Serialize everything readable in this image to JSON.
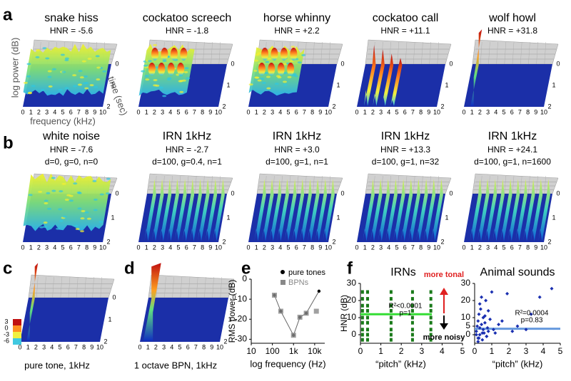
{
  "panels": {
    "a": {
      "label": "a",
      "items": [
        {
          "title": "snake hiss",
          "hnr": "HNR = -5.6"
        },
        {
          "title": "cockatoo screech",
          "hnr": "HNR = -1.8"
        },
        {
          "title": "horse whinny",
          "hnr": "HNR = +2.2"
        },
        {
          "title": "cockatoo call",
          "hnr": "HNR = +11.1"
        },
        {
          "title": "wolf howl",
          "hnr": "HNR = +31.8"
        }
      ],
      "y_label": "log power (dB)",
      "x_label": "frequency (kHz)",
      "z_label": "time (sec)",
      "freq_ticks": [
        "0",
        "1",
        "2",
        "3",
        "4",
        "5",
        "6",
        "7",
        "8",
        "9",
        "10"
      ],
      "time_ticks": [
        "0",
        "1",
        "2"
      ]
    },
    "b": {
      "label": "b",
      "items": [
        {
          "title": "white noise",
          "hnr": "HNR = -7.6",
          "params": "d=0, g=0, n=0"
        },
        {
          "title": "IRN 1kHz",
          "hnr": "HNR = -2.7",
          "params": "d=100, g=0.4, n=1"
        },
        {
          "title": "IRN 1kHz",
          "hnr": "HNR = +3.0",
          "params": "d=100, g=1, n=1"
        },
        {
          "title": "IRN 1kHz",
          "hnr": "HNR = +13.3",
          "params": "d=100, g=1, n=32"
        },
        {
          "title": "IRN 1kHz",
          "hnr": "HNR = +24.1",
          "params": "d=100, g=1, n=1600"
        }
      ]
    },
    "c": {
      "label": "c",
      "caption": "pure tone, 1kHz",
      "colorbar_ticks": [
        "3",
        "0",
        "-3",
        "-6"
      ]
    },
    "d": {
      "label": "d",
      "caption": "1 octave BPN, 1kHz"
    },
    "f": {
      "label": "f",
      "more_tonal": "more tonal",
      "more_noisy": "more noisy"
    }
  },
  "chart_data": [
    {
      "type": "scatter",
      "label": "e",
      "y_label": "RMS power (dB)",
      "x_label": "log frequency (Hz)",
      "log_x": true,
      "xlim": [
        10,
        30000
      ],
      "xticks": [
        10,
        100,
        {
          "value": 1000,
          "label": "1k"
        },
        {
          "value": 10000,
          "label": "10k"
        }
      ],
      "ylim": [
        -32,
        0
      ],
      "yticks": [
        0,
        -10,
        -20,
        -30
      ],
      "series": [
        {
          "name": "pure tones",
          "color": "#000000",
          "x": [
            125,
            250,
            1000,
            2000,
            4000,
            16000
          ],
          "values": [
            -8,
            -16,
            -28,
            -19,
            -17,
            -6
          ]
        },
        {
          "name": "BPNs",
          "color": "#888888",
          "x": [
            125,
            250,
            1000,
            2000,
            4000,
            12000
          ],
          "values": [
            -8,
            -16,
            -28,
            -19,
            -17,
            -16
          ]
        }
      ]
    },
    {
      "type": "scatter",
      "title": "IRNs",
      "y_label": "HNR (dB)",
      "x_label": "“pitch” (kHz)",
      "color": "#1a7a1a",
      "fit_color": "#33dd33",
      "xlim": [
        0,
        5
      ],
      "xticks": [
        0,
        1,
        2,
        3,
        4,
        5
      ],
      "ylim": [
        -5,
        30
      ],
      "yticks": [
        0,
        10,
        20,
        30
      ],
      "fit": 12,
      "stats": [
        "R²<0.0001",
        "p=1"
      ],
      "x": [
        0.1,
        0.1,
        0.1,
        0.1,
        0.1,
        0.1,
        0.1,
        0.1,
        0.1,
        0.35,
        0.35,
        0.35,
        0.35,
        0.35,
        0.35,
        0.35,
        0.35,
        0.35,
        1.5,
        1.5,
        1.5,
        1.5,
        1.5,
        1.5,
        1.5,
        1.5,
        1.5,
        2.55,
        2.55,
        2.55,
        2.55,
        2.55,
        2.55,
        2.55,
        2.55,
        2.55,
        3.45,
        3.45,
        3.45,
        3.45,
        3.45,
        3.45,
        3.45,
        3.45,
        3.45
      ],
      "values": [
        -3,
        0,
        3,
        7,
        10,
        14,
        17,
        21,
        25,
        -3,
        0,
        3,
        7,
        10,
        14,
        17,
        21,
        25,
        -3,
        0,
        3,
        7,
        10,
        14,
        17,
        21,
        25,
        -3,
        0,
        3,
        7,
        10,
        14,
        17,
        21,
        25,
        -3,
        0,
        3,
        7,
        10,
        14,
        17,
        21,
        25
      ]
    },
    {
      "type": "scatter",
      "title": "Animal sounds",
      "x_label": "“pitch” (kHz)",
      "color": "#1a2fb0",
      "fit_color": "#6699dd",
      "xlim": [
        0,
        5
      ],
      "xticks": [
        0,
        1,
        2,
        3,
        4,
        5
      ],
      "ylim": [
        -5,
        30
      ],
      "yticks": [
        0,
        5,
        10,
        20,
        30
      ],
      "fit": 3.5,
      "stats": [
        "R²=0.0004",
        "p=0.83"
      ],
      "x": [
        0.1,
        0.15,
        0.2,
        0.2,
        0.25,
        0.3,
        0.3,
        0.35,
        0.4,
        0.45,
        0.5,
        0.5,
        0.55,
        0.6,
        0.65,
        0.7,
        0.75,
        0.8,
        0.9,
        1.0,
        1.1,
        0.2,
        0.3,
        0.4,
        0.6,
        0.8,
        1.2,
        1.4,
        1.6,
        1.9,
        2.2,
        2.5,
        3.0,
        3.3,
        3.8,
        4.5,
        0.1,
        0.25,
        0.45,
        0.7
      ],
      "values": [
        2,
        5,
        -2,
        8,
        12,
        0,
        4,
        15,
        6,
        -3,
        3,
        10,
        1,
        7,
        20,
        -1,
        4,
        2,
        9,
        25,
        3,
        -4,
        18,
        22,
        11,
        14,
        1,
        6,
        8,
        24,
        2,
        5,
        3,
        12,
        22,
        27,
        0,
        -2,
        1,
        -1
      ]
    }
  ]
}
